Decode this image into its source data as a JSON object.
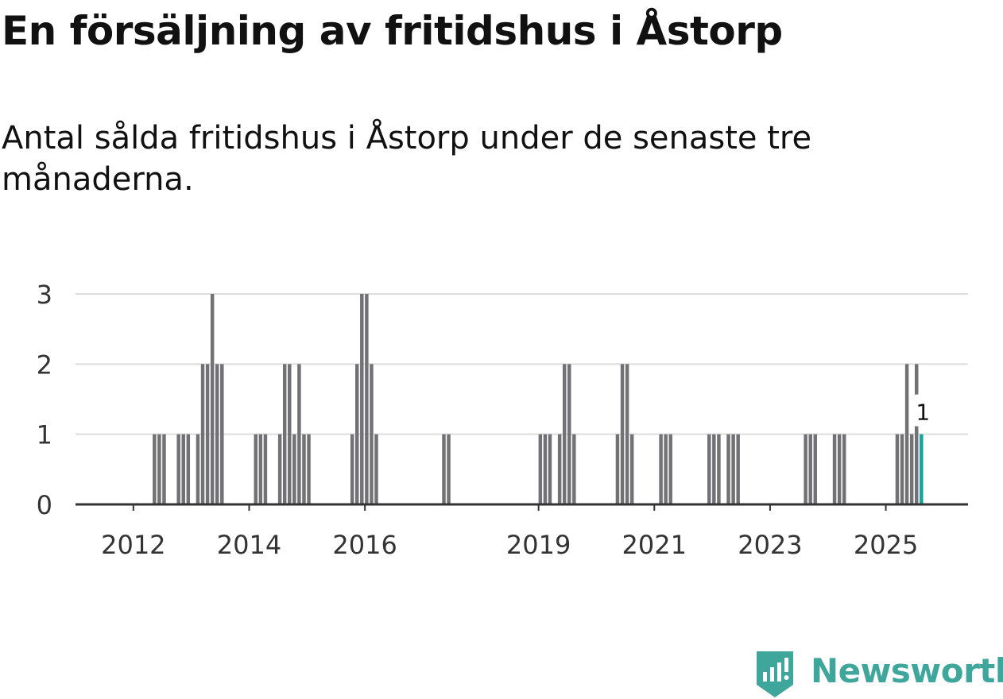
{
  "title": "En försäljning av fritidshus i Åstorp",
  "subtitle": "Antal sålda fritidshus i Åstorp under de senaste tre månaderna.",
  "brand": {
    "name": "Newsworthy",
    "color": "#3fa69c",
    "icon": "bar-chart-badge-icon"
  },
  "colors": {
    "bar": "#727276",
    "highlight": "#13a59d",
    "grid": "#dddddd",
    "axis": "#333333"
  },
  "chart_data": {
    "type": "bar",
    "title": "Antal sålda fritidshus i Åstorp under de senaste tre månaderna.",
    "xlabel": "",
    "ylabel": "",
    "ylim": [
      0,
      3
    ],
    "yticks": [
      0,
      1,
      2,
      3
    ],
    "x_range": [
      2011.0,
      2026.42
    ],
    "xticks": [
      {
        "x": 2012,
        "label": "2012"
      },
      {
        "x": 2014,
        "label": "2014"
      },
      {
        "x": 2016,
        "label": "2016"
      },
      {
        "x": 2019,
        "label": "2019"
      },
      {
        "x": 2021,
        "label": "2021"
      },
      {
        "x": 2023,
        "label": "2023"
      },
      {
        "x": 2025,
        "label": "2025"
      }
    ],
    "bar_width_months": 1,
    "x_unit": "month",
    "series": [
      {
        "name": "Antal sålda fritidshus",
        "points": [
          [
            "2012-05",
            1
          ],
          [
            "2012-06",
            1
          ],
          [
            "2012-07",
            1
          ],
          [
            "2012-10",
            1
          ],
          [
            "2012-11",
            1
          ],
          [
            "2012-12",
            1
          ],
          [
            "2013-02",
            1
          ],
          [
            "2013-03",
            2
          ],
          [
            "2013-04",
            2
          ],
          [
            "2013-05",
            3
          ],
          [
            "2013-06",
            2
          ],
          [
            "2013-07",
            2
          ],
          [
            "2014-02",
            1
          ],
          [
            "2014-03",
            1
          ],
          [
            "2014-04",
            1
          ],
          [
            "2014-07",
            1
          ],
          [
            "2014-08",
            2
          ],
          [
            "2014-09",
            2
          ],
          [
            "2014-10",
            1
          ],
          [
            "2014-11",
            2
          ],
          [
            "2014-12",
            1
          ],
          [
            "2015-01",
            1
          ],
          [
            "2015-10",
            1
          ],
          [
            "2015-11",
            2
          ],
          [
            "2015-12",
            3
          ],
          [
            "2016-01",
            3
          ],
          [
            "2016-02",
            2
          ],
          [
            "2016-03",
            1
          ],
          [
            "2017-05",
            1
          ],
          [
            "2017-06",
            1
          ],
          [
            "2019-01",
            1
          ],
          [
            "2019-02",
            1
          ],
          [
            "2019-03",
            1
          ],
          [
            "2019-05",
            1
          ],
          [
            "2019-06",
            2
          ],
          [
            "2019-07",
            2
          ],
          [
            "2019-08",
            1
          ],
          [
            "2020-05",
            1
          ],
          [
            "2020-06",
            2
          ],
          [
            "2020-07",
            2
          ],
          [
            "2020-08",
            1
          ],
          [
            "2021-02",
            1
          ],
          [
            "2021-03",
            1
          ],
          [
            "2021-04",
            1
          ],
          [
            "2021-12",
            1
          ],
          [
            "2022-01",
            1
          ],
          [
            "2022-02",
            1
          ],
          [
            "2022-04",
            1
          ],
          [
            "2022-05",
            1
          ],
          [
            "2022-06",
            1
          ],
          [
            "2023-08",
            1
          ],
          [
            "2023-09",
            1
          ],
          [
            "2023-10",
            1
          ],
          [
            "2024-02",
            1
          ],
          [
            "2024-03",
            1
          ],
          [
            "2024-04",
            1
          ],
          [
            "2025-03",
            1
          ],
          [
            "2025-04",
            1
          ],
          [
            "2025-05",
            2
          ],
          [
            "2025-06",
            1
          ],
          [
            "2025-07",
            2
          ]
        ]
      }
    ],
    "highlight": {
      "date": "2025-08",
      "value": 1,
      "label": "1"
    }
  }
}
